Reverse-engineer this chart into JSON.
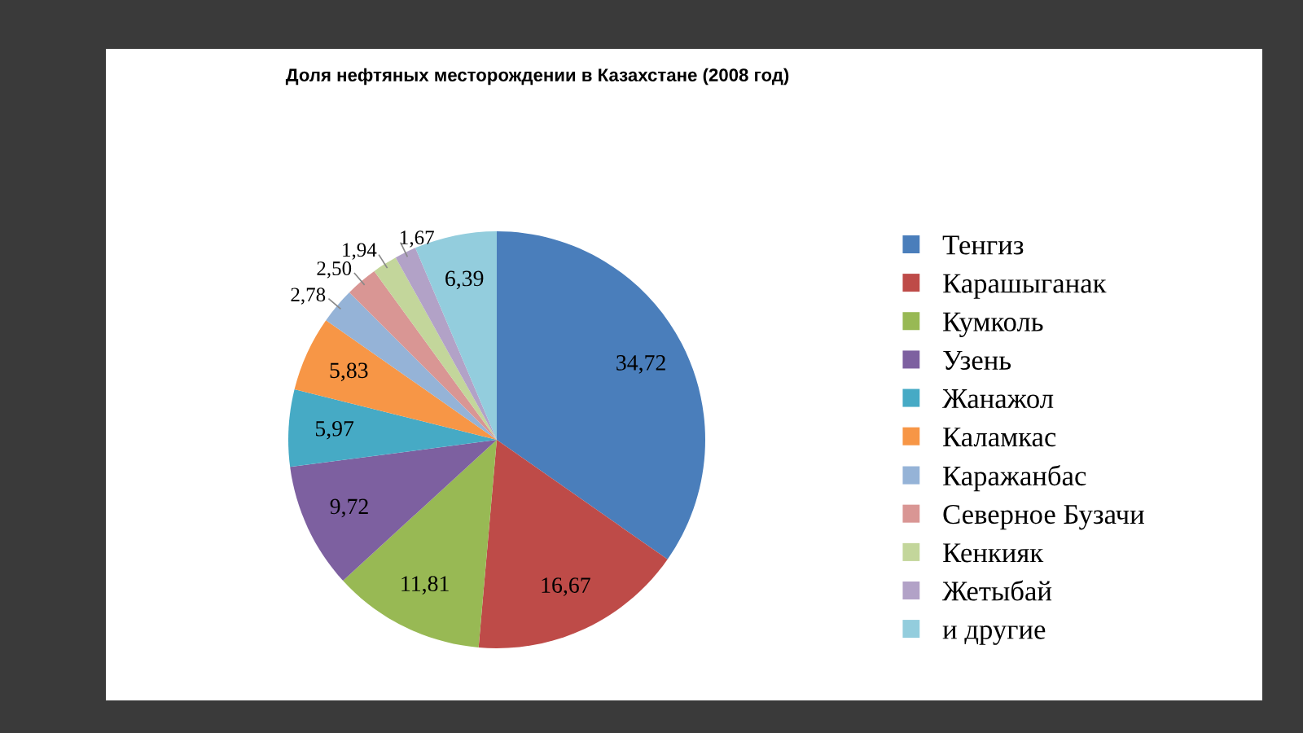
{
  "chart_data": {
    "type": "pie",
    "title": "Доля нефтяных месторождении в Казахстане (2008 год)",
    "categories": [
      "Тенгиз",
      "Карашыганак",
      "Кумколь",
      "Узень",
      "Жанажол",
      "Каламкас",
      "Каражанбас",
      "Северное Бузачи",
      "Кенкияк",
      "Жетыбай",
      "и другие"
    ],
    "values": [
      34.72,
      16.67,
      11.81,
      9.72,
      5.97,
      5.83,
      2.78,
      2.5,
      1.94,
      1.67,
      6.39
    ],
    "value_labels": [
      "34,72",
      "16,67",
      "11,81",
      "9,72",
      "5,97",
      "5,83",
      "2,78",
      "2,50",
      "1,94",
      "1,67",
      "6,39"
    ],
    "colors": [
      "#4a7ebb",
      "#be4b48",
      "#98b954",
      "#7d60a0",
      "#46aac5",
      "#f79646",
      "#95b3d7",
      "#d99694",
      "#c3d69b",
      "#b2a2c7",
      "#93cddd"
    ],
    "legend": "right"
  }
}
